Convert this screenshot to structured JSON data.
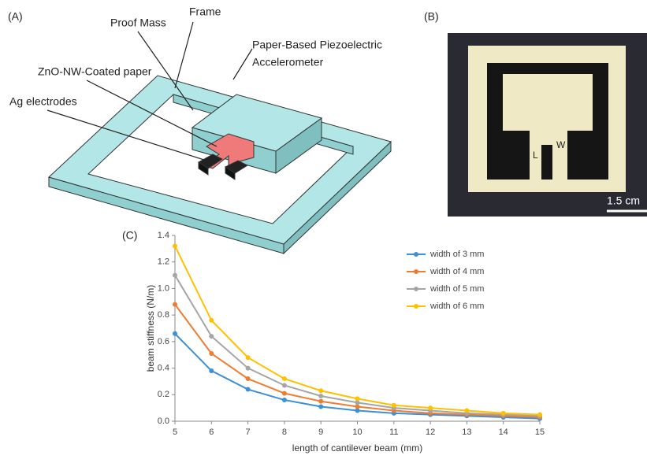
{
  "panel_a": {
    "label": "(A)",
    "proof_mass": "Proof Mass",
    "frame": "Frame",
    "device": [
      "Paper-Based Piezoelectric",
      "Accelerometer"
    ],
    "paper": "ZnO-NW-Coated paper",
    "electrodes": "Ag electrodes"
  },
  "panel_b": {
    "label": "(B)",
    "length": "L",
    "width": "W",
    "scale": "1.5 cm"
  },
  "panel_c": {
    "label": "(C)"
  },
  "chart_data": {
    "type": "line",
    "x_label": "length of cantilever beam (mm)",
    "y_label": "beam stiffness (N/m)",
    "x": [
      5,
      6,
      7,
      8,
      9,
      10,
      11,
      12,
      13,
      14,
      15
    ],
    "series": [
      {
        "name": "width of 3 mm",
        "color": "#3d8fd6",
        "values": [
          0.66,
          0.38,
          0.24,
          0.16,
          0.11,
          0.08,
          0.06,
          0.05,
          0.04,
          0.03,
          0.02
        ]
      },
      {
        "name": "width of 4 mm",
        "color": "#ed7d31",
        "values": [
          0.88,
          0.51,
          0.32,
          0.21,
          0.15,
          0.11,
          0.08,
          0.06,
          0.05,
          0.04,
          0.03
        ]
      },
      {
        "name": "width of 5 mm",
        "color": "#a5a5a5",
        "values": [
          1.1,
          0.64,
          0.4,
          0.27,
          0.19,
          0.14,
          0.1,
          0.08,
          0.06,
          0.05,
          0.04
        ]
      },
      {
        "name": "width of 6 mm",
        "color": "#ffc000",
        "values": [
          1.32,
          0.76,
          0.48,
          0.32,
          0.23,
          0.17,
          0.12,
          0.1,
          0.08,
          0.06,
          0.05
        ]
      }
    ],
    "xlim": [
      5,
      15
    ],
    "xticks": [
      5,
      6,
      7,
      8,
      9,
      10,
      11,
      12,
      13,
      14,
      15
    ],
    "ylim": [
      0,
      1.4
    ],
    "yticks": [
      {
        "value": 0,
        "label": "0.0"
      },
      0.2,
      0.4,
      0.6,
      0.8,
      {
        "value": 1,
        "label": "1.0"
      },
      1.2,
      1.4
    ],
    "legend": "top-right"
  }
}
